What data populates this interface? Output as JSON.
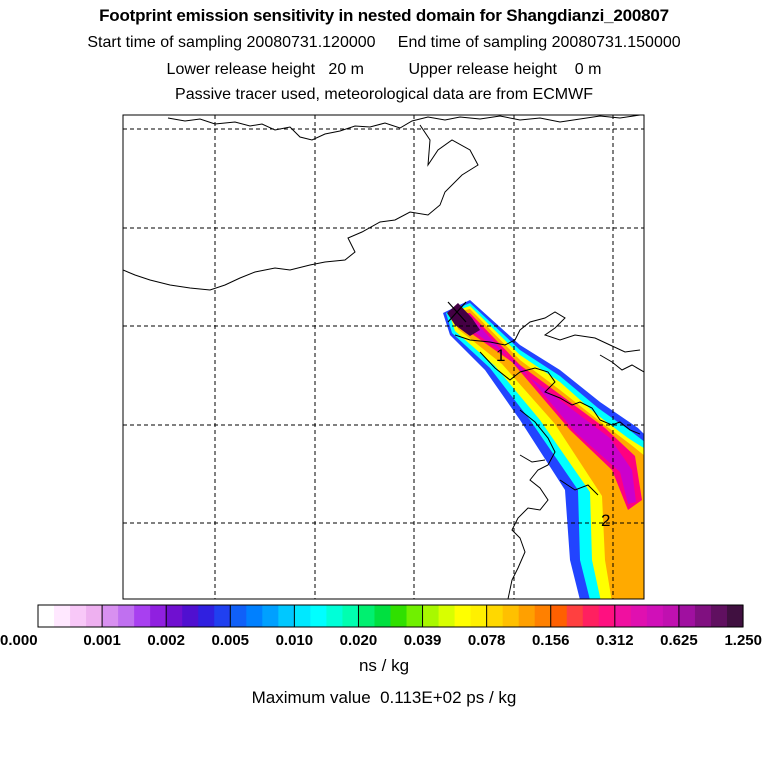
{
  "header": {
    "title": "Footprint emission sensitivity in nested domain for Shangdianzi_200807",
    "line2": "Start time of sampling 20080731.120000     End time of sampling 20080731.150000",
    "line3": "Lower release height   20 m          Upper release height    0 m",
    "line4": "Passive tracer used, meteorological data are from ECMWF"
  },
  "map": {
    "grid": "dashed",
    "release_marker": "x-marker",
    "annotations": [
      "1",
      "2"
    ],
    "plume_colors": {
      "level1": "#2244ff",
      "level2": "#00ffff",
      "level3": "#ffff00",
      "level4": "#ffaa00",
      "level5": "#ff0080",
      "level6": "#cc00cc",
      "level7": "#440044"
    }
  },
  "colorbar": {
    "tick_labels": [
      "0.000",
      "0.001",
      "0.002",
      "0.005",
      "0.010",
      "0.020",
      "0.039",
      "0.078",
      "0.156",
      "0.312",
      "0.625",
      "1.250"
    ],
    "colors": [
      "#ffffff",
      "#ffe8ff",
      "#f8c8f8",
      "#eeb0f0",
      "#d890f0",
      "#c070f0",
      "#a840f0",
      "#9020e0",
      "#7010d0",
      "#5010d0",
      "#3020e0",
      "#2040f0",
      "#1060f8",
      "#0080ff",
      "#00a0ff",
      "#00c8ff",
      "#00e8ff",
      "#00ffff",
      "#00ffd8",
      "#00ffb0",
      "#00f070",
      "#00e040",
      "#30e000",
      "#70f000",
      "#a8f800",
      "#d8ff00",
      "#ffff00",
      "#fff000",
      "#ffd800",
      "#ffc000",
      "#ffa000",
      "#ff8000",
      "#ff6000",
      "#ff4040",
      "#ff2060",
      "#ff1080",
      "#f010a0",
      "#e010b0",
      "#d010b8",
      "#c010b0",
      "#a010a0",
      "#801080",
      "#601060",
      "#401040"
    ],
    "units": "ns / kg",
    "max_value": "Maximum value  0.113E+02 ps / kg"
  }
}
